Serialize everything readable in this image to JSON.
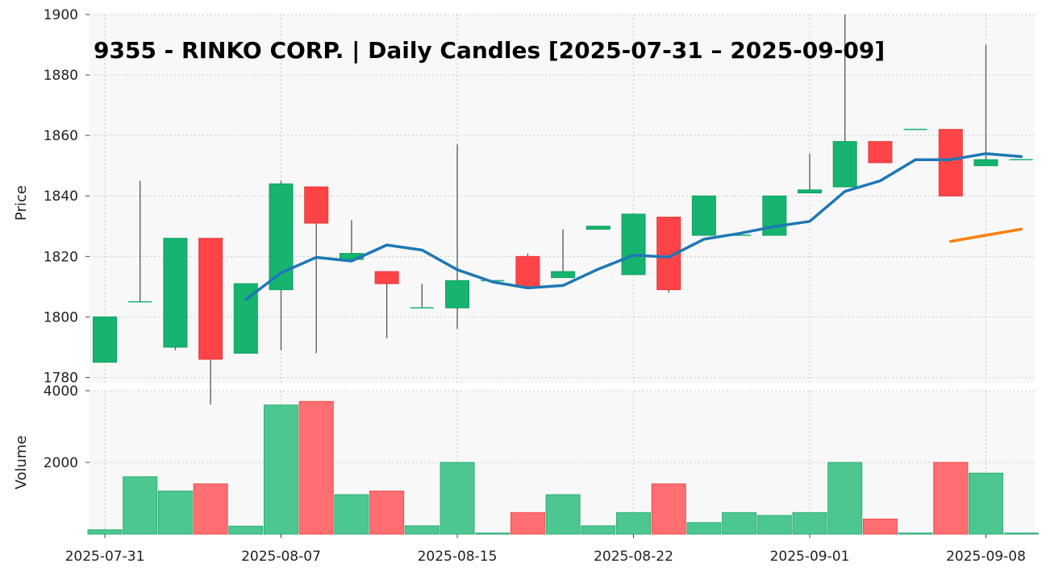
{
  "chart_data": {
    "type": "candlestick",
    "title": "9355 - RINKO CORP. | Daily Candles [2025-07-31 – 2025-09-09]",
    "price_panel": {
      "ylabel": "Price",
      "ylim": [
        1778,
        1900
      ],
      "yticks": [
        1780,
        1800,
        1820,
        1840,
        1860,
        1880,
        1900
      ],
      "grid": true
    },
    "volume_panel": {
      "ylabel": "Volume",
      "ylim": [
        0,
        4000
      ],
      "yticks": [
        2000,
        4000
      ],
      "grid": true
    },
    "xtick_labels": [
      {
        "index": 0,
        "label": "2025-07-31"
      },
      {
        "index": 5,
        "label": "2025-08-07"
      },
      {
        "index": 10,
        "label": "2025-08-15"
      },
      {
        "index": 15,
        "label": "2025-08-22"
      },
      {
        "index": 20,
        "label": "2025-09-01"
      },
      {
        "index": 25,
        "label": "2025-09-08"
      }
    ],
    "candles": [
      {
        "open": 1785,
        "high": 1800,
        "low": 1785,
        "close": 1800,
        "volume": 120
      },
      {
        "open": 1805,
        "high": 1845,
        "low": 1805,
        "close": 1805,
        "volume": 1600
      },
      {
        "open": 1790,
        "high": 1826,
        "low": 1789,
        "close": 1826,
        "volume": 1200
      },
      {
        "open": 1826,
        "high": 1826,
        "low": 1771,
        "close": 1786,
        "volume": 1400
      },
      {
        "open": 1788,
        "high": 1811,
        "low": 1788,
        "close": 1811,
        "volume": 220
      },
      {
        "open": 1809,
        "high": 1845,
        "low": 1789,
        "close": 1844,
        "volume": 3600
      },
      {
        "open": 1843,
        "high": 1843,
        "low": 1788,
        "close": 1831,
        "volume": 3700
      },
      {
        "open": 1819,
        "high": 1832,
        "low": 1819,
        "close": 1821,
        "volume": 1100
      },
      {
        "open": 1815,
        "high": 1815,
        "low": 1793,
        "close": 1811,
        "volume": 1200
      },
      {
        "open": 1803,
        "high": 1811,
        "low": 1803,
        "close": 1803,
        "volume": 230
      },
      {
        "open": 1803,
        "high": 1857,
        "low": 1796,
        "close": 1812,
        "volume": 2000
      },
      {
        "open": 1812,
        "high": 1812,
        "low": 1812,
        "close": 1812,
        "volume": 30
      },
      {
        "open": 1820,
        "high": 1821,
        "low": 1810,
        "close": 1810,
        "volume": 600
      },
      {
        "open": 1813,
        "high": 1829,
        "low": 1813,
        "close": 1815,
        "volume": 1100
      },
      {
        "open": 1829,
        "high": 1830,
        "low": 1829,
        "close": 1830,
        "volume": 230
      },
      {
        "open": 1814,
        "high": 1834,
        "low": 1814,
        "close": 1834,
        "volume": 600
      },
      {
        "open": 1833,
        "high": 1833,
        "low": 1808,
        "close": 1809,
        "volume": 1400
      },
      {
        "open": 1827,
        "high": 1840,
        "low": 1827,
        "close": 1840,
        "volume": 320
      },
      {
        "open": 1827,
        "high": 1827,
        "low": 1827,
        "close": 1827,
        "volume": 600
      },
      {
        "open": 1827,
        "high": 1840,
        "low": 1827,
        "close": 1840,
        "volume": 520
      },
      {
        "open": 1841,
        "high": 1854,
        "low": 1841,
        "close": 1842,
        "volume": 600
      },
      {
        "open": 1843,
        "high": 1900,
        "low": 1843,
        "close": 1858,
        "volume": 2000
      },
      {
        "open": 1858,
        "high": 1858,
        "low": 1851,
        "close": 1851,
        "volume": 420
      },
      {
        "open": 1862,
        "high": 1862,
        "low": 1862,
        "close": 1862,
        "volume": 30
      },
      {
        "open": 1862,
        "high": 1862,
        "low": 1840,
        "close": 1840,
        "volume": 2000
      },
      {
        "open": 1850,
        "high": 1890,
        "low": 1850,
        "close": 1852,
        "volume": 1700
      },
      {
        "open": 1852,
        "high": 1852,
        "low": 1852,
        "close": 1852,
        "volume": 30
      }
    ],
    "ma_short": {
      "color": "#1f77b4",
      "start_index": 4,
      "values": [
        1805.7,
        1814.6,
        1819.7,
        1818.5,
        1823.8,
        1822.1,
        1815.6,
        1811.6,
        1809.6,
        1810.4,
        1815.8,
        1820.4,
        1819.8,
        1825.7,
        1827.6,
        1829.9,
        1831.6,
        1841.5,
        1845,
        1852,
        1852,
        1854,
        1853
      ]
    },
    "ma_long": {
      "color": "#ff7f0e",
      "start_index": 24,
      "values": [
        1825,
        1827,
        1829
      ]
    },
    "colors": {
      "up": "#16b46e",
      "down": "#ff4447",
      "up_volume": "#4cc78f",
      "down_volume": "#ff6e70",
      "plot_background": "#f8f8f8"
    }
  }
}
